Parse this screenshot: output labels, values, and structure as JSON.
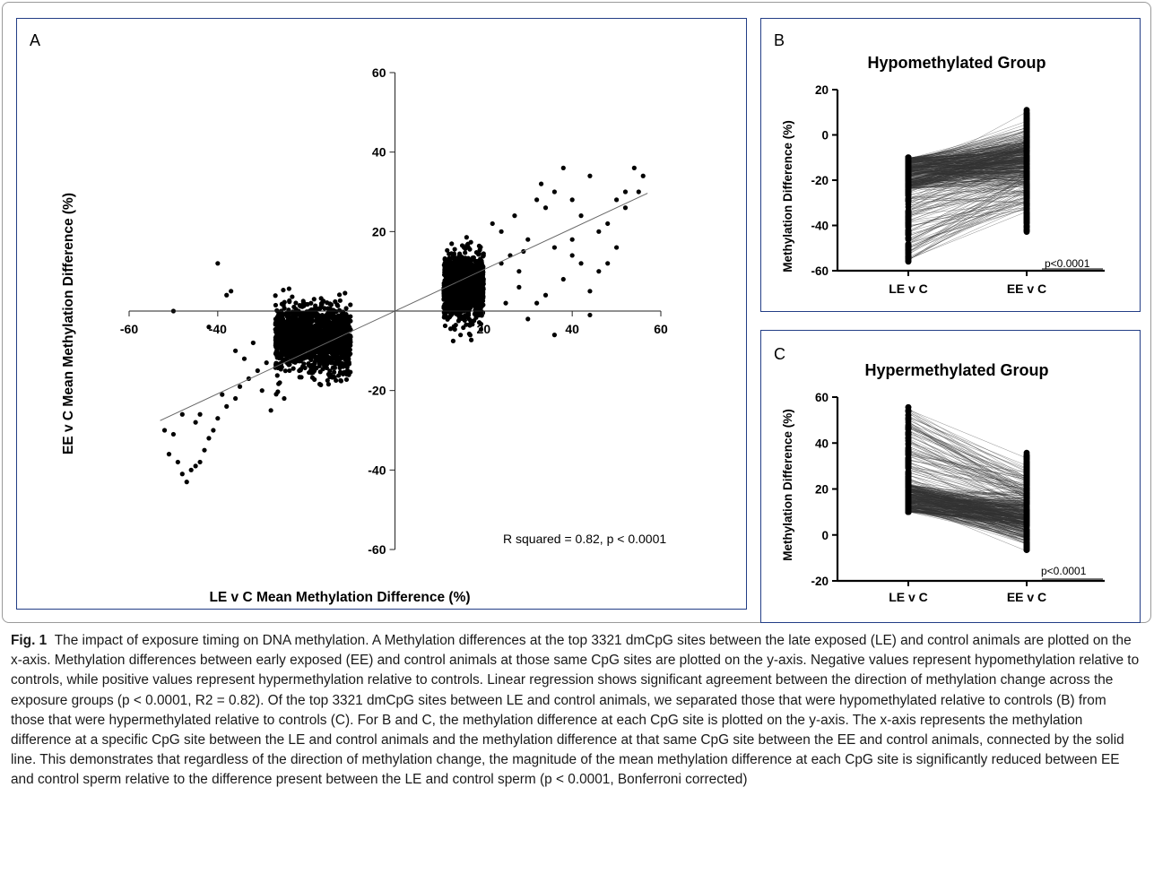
{
  "panels": {
    "a_label": "A",
    "b_label": "B",
    "c_label": "C"
  },
  "chart_data": [
    {
      "panel": "A",
      "type": "scatter",
      "title": "",
      "xlabel": "LE v C Mean Methylation Difference (%)",
      "ylabel": "EE v C Mean Methylation Difference (%)",
      "xlim": [
        -60,
        60
      ],
      "ylim": [
        -60,
        60
      ],
      "xticks": [
        "-60",
        "-40",
        "20",
        "40",
        "60"
      ],
      "yticks": [
        "60",
        "40",
        "20",
        "-20",
        "-40",
        "-60"
      ],
      "annotation": "R squared = 0.82, p < 0.0001",
      "regression": {
        "slope": 0.52,
        "intercept": 0
      },
      "point_color": "#000000",
      "clusters": [
        {
          "name": "hypomethylated dense",
          "x_range": [
            -27,
            -10
          ],
          "y_mean": -7,
          "y_sd": 4,
          "n": 1500
        },
        {
          "name": "hypermethylated dense",
          "x_range": [
            11,
            20
          ],
          "y_mean": 6,
          "y_sd": 4,
          "n": 1200
        }
      ],
      "outliers": [
        [
          -52,
          -30
        ],
        [
          -51,
          -36
        ],
        [
          -50,
          -31
        ],
        [
          -49,
          -38
        ],
        [
          -48,
          -41
        ],
        [
          -47,
          -43
        ],
        [
          -46,
          -40
        ],
        [
          -45,
          -39
        ],
        [
          -44,
          -38
        ],
        [
          -43,
          -35
        ],
        [
          -42,
          -32
        ],
        [
          -41,
          -30
        ],
        [
          -40,
          -27
        ],
        [
          -38,
          -24
        ],
        [
          -36,
          -22
        ],
        [
          -35,
          -19
        ],
        [
          -33,
          -17
        ],
        [
          -31,
          -15
        ],
        [
          -29,
          -13
        ],
        [
          -40,
          12
        ],
        [
          -37,
          5
        ],
        [
          -36,
          -10
        ],
        [
          -34,
          -12
        ],
        [
          -30,
          -20
        ],
        [
          -45,
          -28
        ],
        [
          -39,
          -21
        ],
        [
          -28,
          -25
        ],
        [
          -32,
          -8
        ],
        [
          -42,
          -4
        ],
        [
          -26,
          -18
        ],
        [
          -50,
          0
        ],
        [
          -38,
          4
        ],
        [
          -25,
          -22
        ],
        [
          -44,
          -26
        ],
        [
          -48,
          -26
        ],
        [
          22,
          22
        ],
        [
          24,
          20
        ],
        [
          26,
          14
        ],
        [
          28,
          10
        ],
        [
          30,
          18
        ],
        [
          32,
          28
        ],
        [
          34,
          26
        ],
        [
          36,
          30
        ],
        [
          38,
          36
        ],
        [
          40,
          18
        ],
        [
          42,
          24
        ],
        [
          44,
          34
        ],
        [
          46,
          10
        ],
        [
          48,
          22
        ],
        [
          50,
          28
        ],
        [
          52,
          26
        ],
        [
          54,
          36
        ],
        [
          55,
          30
        ],
        [
          56,
          34
        ],
        [
          34,
          4
        ],
        [
          38,
          8
        ],
        [
          42,
          12
        ],
        [
          44,
          -1
        ],
        [
          36,
          -6
        ],
        [
          30,
          -2
        ],
        [
          25,
          2
        ],
        [
          28,
          6
        ],
        [
          50,
          16
        ],
        [
          46,
          20
        ],
        [
          40,
          28
        ],
        [
          33,
          32
        ],
        [
          27,
          24
        ],
        [
          24,
          12
        ],
        [
          52,
          30
        ],
        [
          48,
          12
        ],
        [
          40,
          14
        ],
        [
          44,
          5
        ],
        [
          36,
          16
        ],
        [
          32,
          2
        ],
        [
          29,
          15
        ]
      ]
    },
    {
      "panel": "B",
      "type": "line",
      "title": "Hypomethylated Group",
      "xlabel": "",
      "ylabel": "Methylation Difference  (%)",
      "categories": [
        "LE v C",
        "EE v C"
      ],
      "ylim": [
        -60,
        20
      ],
      "yticks": [
        "20",
        "0",
        "-20",
        "-40",
        "-60"
      ],
      "pvalue": "p<0.0001",
      "le_range": [
        -56,
        -10
      ],
      "ee_range": [
        -43,
        12
      ]
    },
    {
      "panel": "C",
      "type": "line",
      "title": "Hypermethylated Group",
      "xlabel": "",
      "ylabel": "Methylation Difference (%)",
      "categories": [
        "LE v C",
        "EE v C"
      ],
      "ylim": [
        -20,
        60
      ],
      "yticks": [
        "60",
        "40",
        "20",
        "0",
        "-20"
      ],
      "pvalue": "p<0.0001",
      "le_range": [
        10,
        56
      ],
      "ee_range": [
        -7,
        36
      ]
    }
  ],
  "caption": {
    "fig_label": "Fig. 1",
    "text": "The impact of exposure timing on DNA methylation. A Methylation differences at the top 3321 dmCpG sites between the late exposed (LE) and control animals are plotted on the x-axis. Methylation differences between early exposed (EE) and control animals at those same CpG sites are plotted on the y-axis. Negative values represent hypomethylation relative to controls, while positive values represent hypermethylation relative to controls. Linear regression shows significant agreement between the direction of methylation change across the exposure groups (p < 0.0001, R2 = 0.82). Of the top 3321 dmCpG sites between LE and control animals, we separated those that were hypomethylated relative to controls (B) from those that were hypermethylated relative to controls (C). For B and C, the methylation difference at each CpG site is plotted on the y-axis. The x-axis represents the methylation difference at a specific CpG site between the LE and control animals and the methylation difference at that same CpG site between the EE and control animals, connected by the solid line. This demonstrates that regardless of the direction of methylation change, the magnitude of the mean methylation difference at each CpG site is significantly reduced between EE and control sperm relative to the difference present between the LE and control sperm (p < 0.0001, Bonferroni corrected)"
  }
}
